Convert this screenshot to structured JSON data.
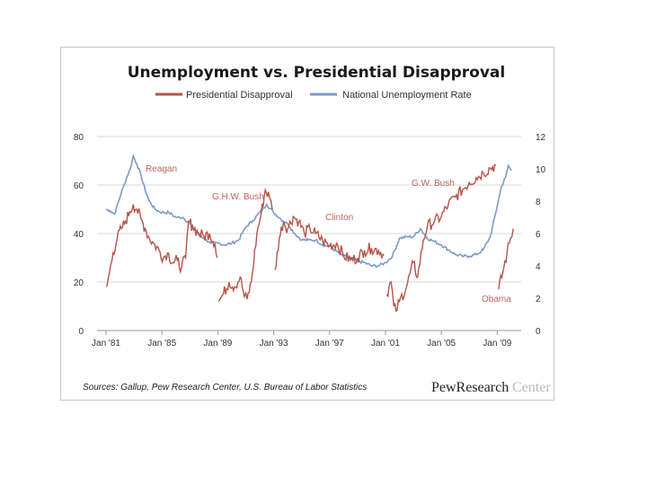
{
  "chart_data": {
    "type": "line",
    "title": "Unemployment vs. Presidential Disapproval",
    "legend": [
      {
        "name": "Presidential Disapproval",
        "color": "#b5554a"
      },
      {
        "name": "National Unemployment Rate",
        "color": "#7b9bc8"
      }
    ],
    "x_ticks": [
      {
        "year": 1981,
        "label": "Jan '81"
      },
      {
        "year": 1985,
        "label": "Jan '85"
      },
      {
        "year": 1989,
        "label": "Jan '89"
      },
      {
        "year": 1993,
        "label": "Jan '93"
      },
      {
        "year": 1997,
        "label": "Jan '97"
      },
      {
        "year": 2001,
        "label": "Jan '01"
      },
      {
        "year": 2005,
        "label": "Jan '05"
      },
      {
        "year": 2009,
        "label": "Jan '09"
      }
    ],
    "xlim": [
      1981,
      2010.2
    ],
    "y_left": {
      "label": "Presidential Disapproval",
      "range": [
        0,
        80
      ],
      "ticks": [
        "0",
        "20",
        "40",
        "60",
        "80"
      ],
      "values": [
        0,
        20,
        40,
        60,
        80
      ]
    },
    "y_right": {
      "label": "National Unemployment Rate",
      "range": [
        0,
        12
      ],
      "ticks": [
        "0",
        "2",
        "4",
        "6",
        "8",
        "10",
        "12"
      ],
      "values": [
        0,
        2,
        4,
        6,
        8,
        10,
        12
      ]
    },
    "series": [
      {
        "name": "National Unemployment Rate",
        "axis": "right",
        "points": [
          [
            1981.0,
            7.5
          ],
          [
            1981.3,
            7.4
          ],
          [
            1981.6,
            7.2
          ],
          [
            1981.9,
            8.0
          ],
          [
            1982.2,
            8.8
          ],
          [
            1982.5,
            9.5
          ],
          [
            1982.8,
            10.2
          ],
          [
            1982.95,
            10.8
          ],
          [
            1983.2,
            10.3
          ],
          [
            1983.5,
            9.6
          ],
          [
            1983.8,
            8.7
          ],
          [
            1984.1,
            8.0
          ],
          [
            1984.5,
            7.5
          ],
          [
            1985.0,
            7.3
          ],
          [
            1985.5,
            7.3
          ],
          [
            1986.0,
            7.0
          ],
          [
            1986.5,
            7.0
          ],
          [
            1987.0,
            6.6
          ],
          [
            1987.5,
            6.1
          ],
          [
            1988.0,
            5.7
          ],
          [
            1988.5,
            5.4
          ],
          [
            1989.0,
            5.4
          ],
          [
            1989.5,
            5.3
          ],
          [
            1990.0,
            5.4
          ],
          [
            1990.5,
            5.6
          ],
          [
            1991.0,
            6.4
          ],
          [
            1991.5,
            6.8
          ],
          [
            1992.0,
            7.3
          ],
          [
            1992.5,
            7.8
          ],
          [
            1993.0,
            7.3
          ],
          [
            1993.5,
            6.9
          ],
          [
            1994.0,
            6.6
          ],
          [
            1994.5,
            6.0
          ],
          [
            1995.0,
            5.6
          ],
          [
            1995.5,
            5.6
          ],
          [
            1996.0,
            5.6
          ],
          [
            1996.5,
            5.3
          ],
          [
            1997.0,
            5.2
          ],
          [
            1997.5,
            4.9
          ],
          [
            1998.0,
            4.6
          ],
          [
            1998.5,
            4.5
          ],
          [
            1999.0,
            4.3
          ],
          [
            1999.5,
            4.2
          ],
          [
            2000.0,
            4.0
          ],
          [
            2000.5,
            4.0
          ],
          [
            2001.0,
            4.2
          ],
          [
            2001.5,
            4.6
          ],
          [
            2002.0,
            5.7
          ],
          [
            2002.5,
            5.8
          ],
          [
            2003.0,
            5.8
          ],
          [
            2003.5,
            6.3
          ],
          [
            2004.0,
            5.7
          ],
          [
            2004.5,
            5.5
          ],
          [
            2005.0,
            5.3
          ],
          [
            2005.5,
            5.0
          ],
          [
            2006.0,
            4.7
          ],
          [
            2006.5,
            4.6
          ],
          [
            2007.0,
            4.6
          ],
          [
            2007.5,
            4.7
          ],
          [
            2008.0,
            5.0
          ],
          [
            2008.5,
            5.8
          ],
          [
            2009.0,
            7.7
          ],
          [
            2009.3,
            8.9
          ],
          [
            2009.6,
            9.5
          ],
          [
            2009.8,
            10.2
          ],
          [
            2010.0,
            9.9
          ]
        ]
      },
      {
        "name": "Presidential Disapproval",
        "axis": "left",
        "segments": [
          [
            [
              1981.05,
              18
            ],
            [
              1981.25,
              24
            ],
            [
              1981.5,
              32
            ],
            [
              1981.8,
              38
            ],
            [
              1982.1,
              42
            ],
            [
              1982.4,
              45
            ],
            [
              1982.7,
              49
            ],
            [
              1982.95,
              52
            ],
            [
              1983.2,
              50
            ],
            [
              1983.5,
              46
            ],
            [
              1983.8,
              42
            ],
            [
              1984.1,
              38
            ],
            [
              1984.4,
              36
            ],
            [
              1984.8,
              33
            ],
            [
              1985.1,
              30
            ],
            [
              1985.4,
              32
            ],
            [
              1985.8,
              28
            ],
            [
              1986.1,
              29
            ],
            [
              1986.4,
              26
            ],
            [
              1986.7,
              30
            ],
            [
              1986.9,
              45
            ],
            [
              1987.2,
              43
            ],
            [
              1987.6,
              40
            ],
            [
              1988.0,
              39
            ],
            [
              1988.4,
              40
            ],
            [
              1988.8,
              36
            ],
            [
              1988.95,
              30
            ]
          ],
          [
            [
              1989.05,
              12
            ],
            [
              1989.4,
              15
            ],
            [
              1989.8,
              20
            ],
            [
              1990.2,
              18
            ],
            [
              1990.6,
              22
            ],
            [
              1990.9,
              14
            ],
            [
              1991.1,
              13
            ],
            [
              1991.4,
              20
            ],
            [
              1991.8,
              40
            ],
            [
              1992.1,
              48
            ],
            [
              1992.4,
              58
            ],
            [
              1992.7,
              55
            ],
            [
              1992.9,
              50
            ]
          ],
          [
            [
              1993.1,
              25
            ],
            [
              1993.4,
              38
            ],
            [
              1993.7,
              45
            ],
            [
              1994.0,
              42
            ],
            [
              1994.4,
              47
            ],
            [
              1994.8,
              45
            ],
            [
              1995.2,
              40
            ],
            [
              1995.6,
              42
            ],
            [
              1996.0,
              40
            ],
            [
              1996.5,
              37
            ],
            [
              1997.0,
              35
            ],
            [
              1997.5,
              36
            ],
            [
              1998.0,
              31
            ],
            [
              1998.5,
              29
            ],
            [
              1999.0,
              30
            ],
            [
              1999.5,
              33
            ],
            [
              2000.0,
              34
            ],
            [
              2000.5,
              33
            ],
            [
              2000.9,
              31
            ]
          ],
          [
            [
              2001.1,
              15
            ],
            [
              2001.4,
              20
            ],
            [
              2001.6,
              10
            ],
            [
              2001.75,
              8
            ],
            [
              2002.0,
              12
            ],
            [
              2002.5,
              18
            ],
            [
              2003.0,
              28
            ],
            [
              2003.3,
              22
            ],
            [
              2003.7,
              37
            ],
            [
              2004.0,
              43
            ],
            [
              2004.5,
              45
            ],
            [
              2005.0,
              47
            ],
            [
              2005.5,
              52
            ],
            [
              2006.0,
              55
            ],
            [
              2006.5,
              58
            ],
            [
              2007.0,
              61
            ],
            [
              2007.5,
              63
            ],
            [
              2008.0,
              65
            ],
            [
              2008.5,
              67
            ],
            [
              2008.9,
              68
            ]
          ],
          [
            [
              2009.1,
              17
            ],
            [
              2009.4,
              24
            ],
            [
              2009.7,
              32
            ],
            [
              2009.95,
              38
            ],
            [
              2010.15,
              42
            ]
          ]
        ]
      }
    ],
    "annotations": [
      "Reagan",
      "G.H.W. Bush",
      "Clinton",
      "G.W. Bush",
      "Obama"
    ]
  },
  "footer": {
    "source": "Sources: Gallup, Pew Research Center, U.S. Bureau of Labor Statistics",
    "brand_main": "PewResearch",
    "brand_sub": "Center"
  }
}
